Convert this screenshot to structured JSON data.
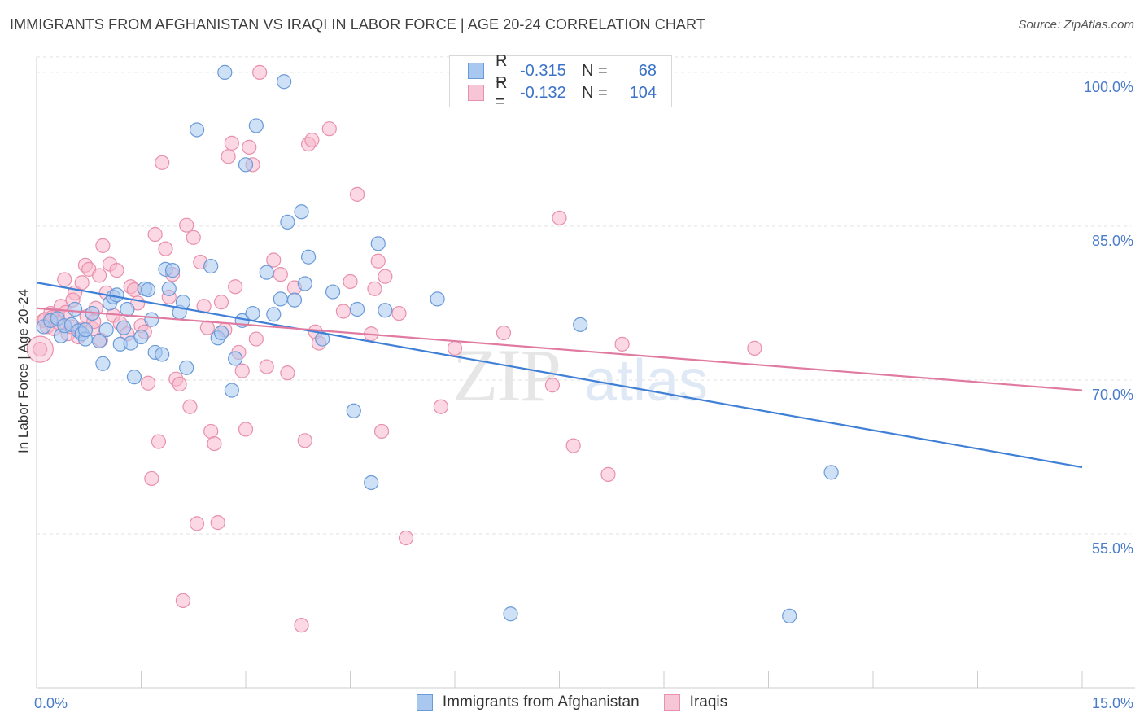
{
  "header": {
    "title": "IMMIGRANTS FROM AFGHANISTAN VS IRAQI IN LABOR FORCE | AGE 20-24 CORRELATION CHART",
    "source": "Source: ZipAtlas.com"
  },
  "legend": {
    "series1": {
      "r_label": "R = ",
      "r_value": "-0.315",
      "n_label": "N = ",
      "n_value": "68"
    },
    "series2": {
      "r_label": "R = ",
      "r_value": "-0.132",
      "n_label": "N = ",
      "n_value": "104"
    }
  },
  "colors": {
    "blue_fill": "#a8c8f0",
    "blue_stroke": "#6a9ad8",
    "blue_line": "#3f7fd6",
    "pink_fill": "#f7b8cc",
    "pink_stroke": "#e890ac",
    "pink_line": "#e07aa0",
    "tick_label": "#4a7cc9",
    "grid": "#e2e2e2"
  },
  "watermark": {
    "zip": "ZIP",
    "atlas": "atlas"
  },
  "chart_data": {
    "type": "scatter",
    "title": "IMMIGRANTS FROM AFGHANISTAN VS IRAQI IN LABOR FORCE | AGE 20-24 CORRELATION CHART",
    "xlabel": "",
    "ylabel": "In Labor Force | Age 20-24",
    "xlim": [
      0,
      15
    ],
    "ylim": [
      40,
      101.5
    ],
    "x_tick_labels": [
      {
        "value": 0,
        "label": "0.0%"
      },
      {
        "value": 15,
        "label": "15.0%"
      }
    ],
    "y_tick_labels": [
      {
        "value": 55,
        "label": "55.0%"
      },
      {
        "value": 70,
        "label": "70.0%"
      },
      {
        "value": 85,
        "label": "85.0%"
      },
      {
        "value": 100,
        "label": "100.0%"
      }
    ],
    "y_gridlines": [
      55,
      70,
      85,
      100
    ],
    "legend_placement": "top-center",
    "series": [
      {
        "name": "Immigrants from Afghanistan",
        "color": "#a8c8f0",
        "trend": {
          "x": [
            0,
            15
          ],
          "y": [
            79.5,
            61.5
          ]
        },
        "points": [
          [
            0.1,
            75.2
          ],
          [
            0.2,
            75.8
          ],
          [
            0.3,
            76
          ],
          [
            0.35,
            74.3
          ],
          [
            0.4,
            75.3
          ],
          [
            0.5,
            75.4
          ],
          [
            0.55,
            76.9
          ],
          [
            0.6,
            74.8
          ],
          [
            0.65,
            74.5
          ],
          [
            0.7,
            74
          ],
          [
            0.7,
            74.9
          ],
          [
            0.8,
            76.5
          ],
          [
            0.9,
            73.8
          ],
          [
            0.95,
            71.6
          ],
          [
            1.0,
            74.9
          ],
          [
            1.05,
            77.5
          ],
          [
            1.1,
            78.1
          ],
          [
            1.15,
            78.3
          ],
          [
            1.2,
            73.5
          ],
          [
            1.25,
            75.1
          ],
          [
            1.3,
            76.9
          ],
          [
            1.35,
            73.6
          ],
          [
            1.4,
            70.3
          ],
          [
            1.5,
            74.2
          ],
          [
            1.55,
            78.9
          ],
          [
            1.6,
            78.8
          ],
          [
            1.65,
            75.9
          ],
          [
            1.7,
            72.7
          ],
          [
            1.8,
            72.5
          ],
          [
            1.85,
            80.8
          ],
          [
            1.9,
            78.9
          ],
          [
            1.95,
            80.7
          ],
          [
            2.05,
            76.6
          ],
          [
            2.1,
            77.6
          ],
          [
            2.15,
            71.2
          ],
          [
            2.3,
            94.4
          ],
          [
            2.5,
            81.1
          ],
          [
            2.6,
            74.1
          ],
          [
            2.65,
            74.6
          ],
          [
            2.7,
            100
          ],
          [
            2.8,
            69
          ],
          [
            2.85,
            72.1
          ],
          [
            2.95,
            75.8
          ],
          [
            3.0,
            91
          ],
          [
            3.1,
            76.5
          ],
          [
            3.15,
            94.8
          ],
          [
            3.3,
            80.5
          ],
          [
            3.4,
            76.4
          ],
          [
            3.5,
            77.9
          ],
          [
            3.55,
            99.1
          ],
          [
            3.6,
            85.4
          ],
          [
            3.7,
            77.8
          ],
          [
            3.8,
            86.4
          ],
          [
            3.85,
            79.4
          ],
          [
            3.9,
            82
          ],
          [
            4.1,
            74
          ],
          [
            4.25,
            78.6
          ],
          [
            4.55,
            67
          ],
          [
            4.6,
            76.9
          ],
          [
            4.8,
            60
          ],
          [
            4.9,
            83.3
          ],
          [
            5.0,
            76.8
          ],
          [
            5.75,
            77.9
          ],
          [
            6.8,
            47.2
          ],
          [
            7.8,
            75.4
          ],
          [
            11.4,
            61
          ],
          [
            10.8,
            47
          ]
        ]
      },
      {
        "name": "Iraqis",
        "color": "#f7b8cc",
        "trend": {
          "x": [
            0,
            15
          ],
          "y": [
            77,
            69
          ]
        },
        "points": [
          [
            0.05,
            73
          ],
          [
            0.1,
            75.8
          ],
          [
            0.15,
            75.2
          ],
          [
            0.2,
            76.5
          ],
          [
            0.25,
            75
          ],
          [
            0.3,
            76.3
          ],
          [
            0.35,
            77.2
          ],
          [
            0.4,
            79.8
          ],
          [
            0.45,
            74.5
          ],
          [
            0.5,
            75.2
          ],
          [
            0.55,
            78.5
          ],
          [
            0.6,
            74.2
          ],
          [
            0.65,
            79.5
          ],
          [
            0.7,
            81.2
          ],
          [
            0.75,
            80.8
          ],
          [
            0.8,
            75
          ],
          [
            0.85,
            77
          ],
          [
            0.9,
            80.2
          ],
          [
            0.95,
            83.1
          ],
          [
            1.0,
            78.5
          ],
          [
            1.05,
            81.3
          ],
          [
            1.1,
            76.3
          ],
          [
            1.15,
            80.7
          ],
          [
            1.2,
            75.5
          ],
          [
            1.3,
            74.5
          ],
          [
            1.35,
            79.1
          ],
          [
            1.4,
            78.8
          ],
          [
            1.45,
            77.5
          ],
          [
            1.5,
            75.3
          ],
          [
            1.55,
            74.7
          ],
          [
            1.6,
            69.7
          ],
          [
            1.65,
            60.4
          ],
          [
            1.7,
            84.2
          ],
          [
            1.75,
            64
          ],
          [
            1.8,
            91.2
          ],
          [
            1.85,
            82.8
          ],
          [
            1.9,
            78.1
          ],
          [
            1.95,
            80.3
          ],
          [
            2.0,
            70.1
          ],
          [
            2.05,
            69.6
          ],
          [
            2.1,
            48.5
          ],
          [
            2.15,
            85.1
          ],
          [
            2.2,
            67.4
          ],
          [
            2.25,
            83.9
          ],
          [
            2.3,
            56
          ],
          [
            2.35,
            81.5
          ],
          [
            2.4,
            77.2
          ],
          [
            2.45,
            75.1
          ],
          [
            2.5,
            65
          ],
          [
            2.55,
            63.8
          ],
          [
            2.6,
            56.1
          ],
          [
            2.65,
            77.6
          ],
          [
            2.7,
            74.9
          ],
          [
            2.75,
            91.8
          ],
          [
            2.8,
            93.1
          ],
          [
            2.85,
            79.1
          ],
          [
            2.9,
            72.7
          ],
          [
            2.95,
            70.9
          ],
          [
            3.0,
            65.2
          ],
          [
            3.05,
            92.7
          ],
          [
            3.1,
            91
          ],
          [
            3.15,
            74
          ],
          [
            3.2,
            100
          ],
          [
            3.3,
            71.3
          ],
          [
            3.4,
            81.7
          ],
          [
            3.5,
            80.3
          ],
          [
            3.6,
            70.7
          ],
          [
            3.7,
            79
          ],
          [
            3.8,
            46.1
          ],
          [
            3.85,
            64.1
          ],
          [
            3.9,
            93
          ],
          [
            3.95,
            93.4
          ],
          [
            4.0,
            74.7
          ],
          [
            4.05,
            73.6
          ],
          [
            4.2,
            94.5
          ],
          [
            4.4,
            76.7
          ],
          [
            4.5,
            79.6
          ],
          [
            4.6,
            88.1
          ],
          [
            4.8,
            74.5
          ],
          [
            4.85,
            78.9
          ],
          [
            4.9,
            81.6
          ],
          [
            4.95,
            65
          ],
          [
            5.0,
            80.1
          ],
          [
            5.2,
            76.5
          ],
          [
            5.3,
            54.6
          ],
          [
            5.8,
            67.4
          ],
          [
            6.0,
            73.1
          ],
          [
            6.7,
            74.6
          ],
          [
            7.4,
            69.5
          ],
          [
            7.5,
            85.8
          ],
          [
            7.7,
            63.6
          ],
          [
            8.2,
            60.8
          ],
          [
            8.4,
            73.5
          ],
          [
            10.3,
            73.1
          ],
          [
            0.12,
            75.9
          ],
          [
            0.22,
            76.1
          ],
          [
            0.32,
            75.6
          ],
          [
            0.42,
            76.6
          ],
          [
            0.52,
            77.8
          ],
          [
            0.62,
            74.9
          ],
          [
            0.72,
            76.2
          ],
          [
            0.82,
            75.7
          ],
          [
            0.92,
            73.9
          ]
        ]
      }
    ]
  },
  "bottom_legend": {
    "item1": "Immigrants from Afghanistan",
    "item2": "Iraqis"
  }
}
